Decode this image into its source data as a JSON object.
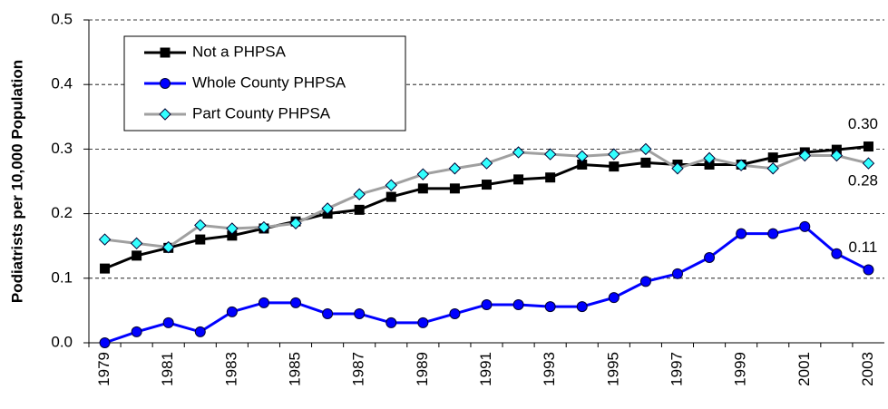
{
  "chart_data": {
    "type": "line",
    "y_label": "Podiatrists per 10,000 Population",
    "categories": [
      "1979",
      null,
      "1981",
      null,
      "1983",
      null,
      "1985",
      null,
      "1987",
      null,
      "1989",
      null,
      "1991",
      null,
      "1993",
      null,
      "1995",
      null,
      "1997",
      null,
      "1999",
      null,
      "2001",
      null,
      "2003"
    ],
    "series": [
      {
        "name": "Not a PHPSA",
        "color": "#000000",
        "marker": "square",
        "values": [
          0.115,
          0.135,
          0.147,
          0.16,
          0.166,
          0.177,
          0.188,
          0.2,
          0.206,
          0.226,
          0.239,
          0.239,
          0.245,
          0.253,
          0.256,
          0.276,
          0.273,
          0.279,
          0.276,
          0.276,
          0.276,
          0.287,
          0.295,
          0.299,
          0.304
        ],
        "value_labels": [
          null,
          null,
          null,
          null,
          null,
          null,
          null,
          null,
          null,
          null,
          null,
          null,
          null,
          null,
          null,
          null,
          null,
          null,
          null,
          null,
          null,
          null,
          null,
          null,
          "0.30"
        ]
      },
      {
        "name": "Whole County PHPSA",
        "color": "#0000ff",
        "marker": "circle",
        "values": [
          0,
          0.017,
          0.031,
          0.017,
          0.048,
          0.062,
          0.062,
          0.045,
          0.045,
          0.031,
          0.031,
          0.045,
          0.059,
          0.059,
          0.056,
          0.056,
          0.07,
          0.095,
          0.107,
          0.132,
          0.169,
          0.169,
          0.18,
          0.138,
          0.113
        ],
        "value_labels": [
          null,
          null,
          null,
          null,
          null,
          null,
          null,
          null,
          null,
          null,
          null,
          null,
          null,
          null,
          null,
          null,
          null,
          null,
          null,
          null,
          null,
          null,
          null,
          null,
          "0.11"
        ]
      },
      {
        "name": "Part County PHPSA",
        "color": "#a0a0a0",
        "marker": "diamond",
        "marker_color": "#33ffff",
        "values": [
          0.16,
          0.154,
          0.148,
          0.182,
          0.177,
          0.179,
          0.185,
          0.208,
          0.23,
          0.244,
          0.261,
          0.27,
          0.278,
          0.295,
          0.292,
          0.289,
          0.292,
          0.3,
          0.27,
          0.286,
          0.275,
          0.27,
          0.29,
          0.29,
          0.278
        ],
        "value_labels": [
          null,
          null,
          null,
          null,
          null,
          null,
          null,
          null,
          null,
          null,
          null,
          null,
          null,
          null,
          null,
          null,
          null,
          null,
          null,
          null,
          null,
          null,
          null,
          null,
          "0.28"
        ]
      }
    ],
    "ylim": [
      0,
      0.5
    ],
    "yticks": [
      {
        "value": 0,
        "label": "0.0"
      },
      0.1,
      0.2,
      0.3,
      0.4,
      0.5
    ],
    "grid": true,
    "legend": "upper left"
  }
}
